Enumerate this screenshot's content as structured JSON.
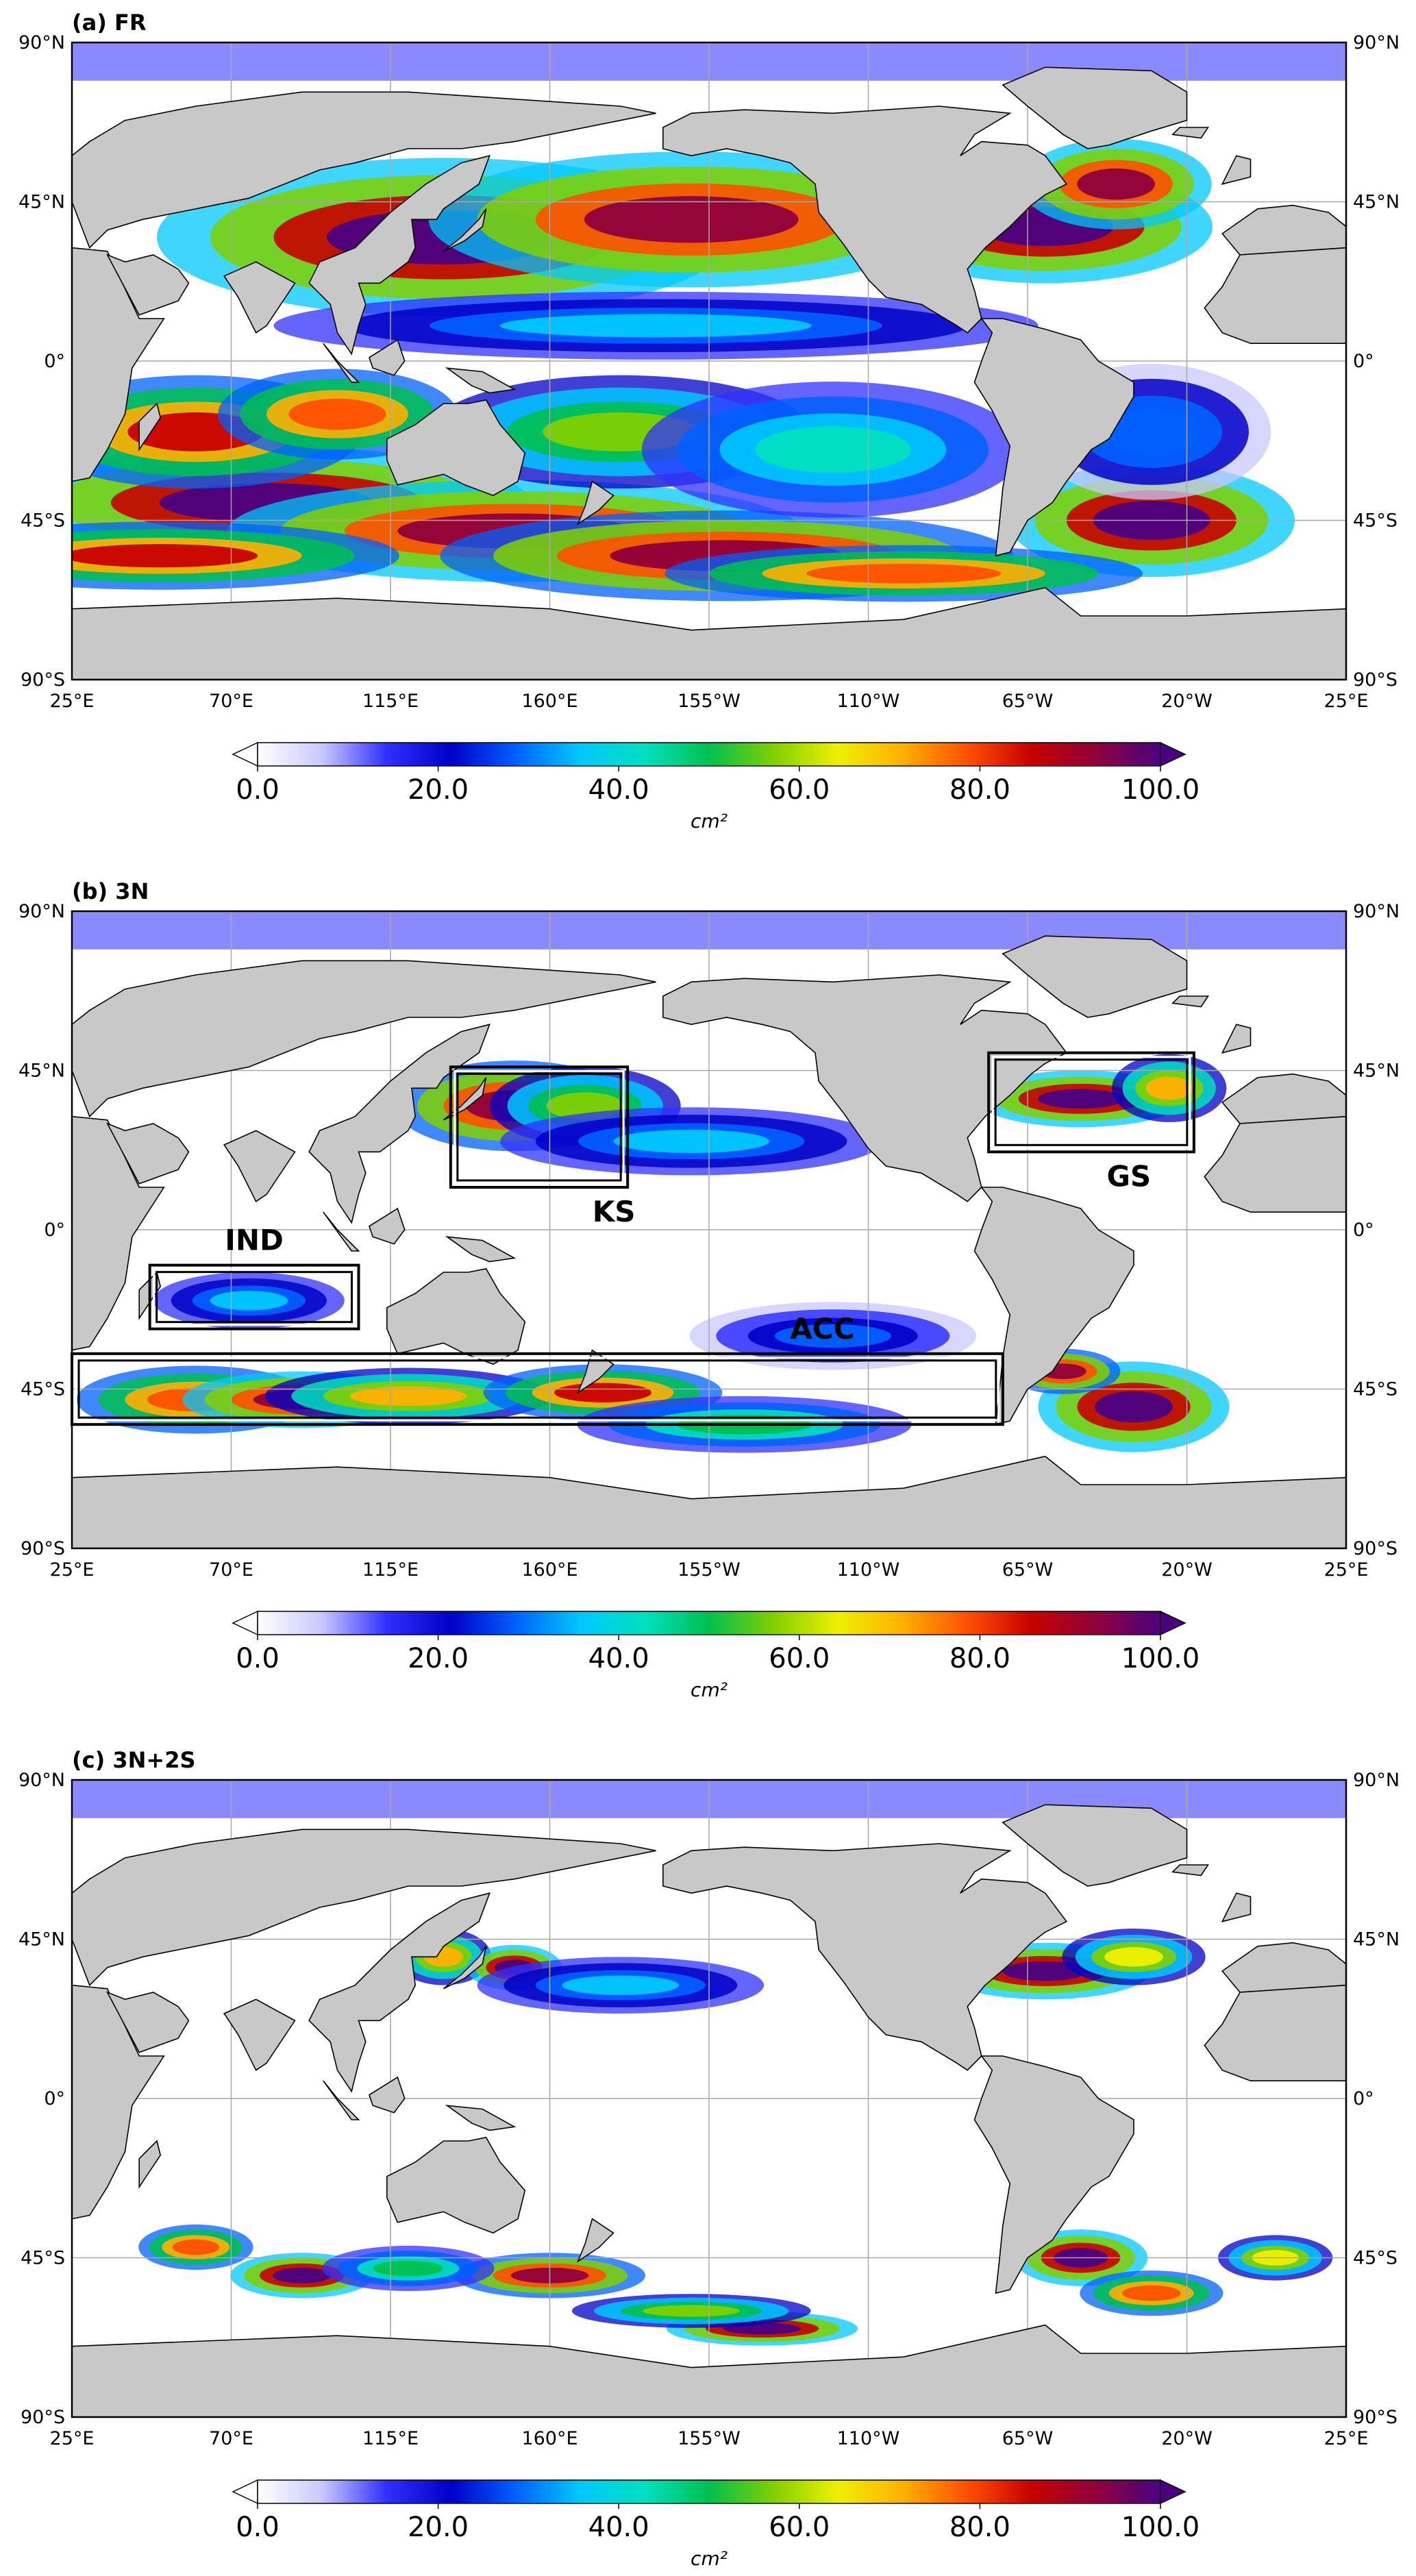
{
  "panels": [
    {
      "id": "a",
      "title": "(a) FR",
      "colorbar_label": "cm²",
      "regions": []
    },
    {
      "id": "b",
      "title": "(b) 3N",
      "colorbar_label": "cm²",
      "regions": [
        {
          "name": "KS",
          "label": "KS",
          "lon": [
            132,
            182
          ],
          "lat": [
            12,
            46
          ]
        },
        {
          "name": "GS",
          "label": "GS",
          "lon": [
            284,
            342
          ],
          "lat": [
            22,
            50
          ]
        },
        {
          "name": "IND",
          "label": "IND",
          "lon": [
            47,
            106
          ],
          "lat": [
            -28,
            -10
          ]
        },
        {
          "name": "ACC",
          "label": "ACC",
          "lon": [
            25,
            288
          ],
          "lat": [
            -55,
            -35
          ]
        }
      ]
    },
    {
      "id": "c",
      "title": "(c) 3N+2S",
      "colorbar_label": "cm²",
      "regions": []
    }
  ],
  "axes": {
    "lon_ticks": [
      "25°E",
      "70°E",
      "115°E",
      "160°E",
      "155°W",
      "110°W",
      "65°W",
      "20°W",
      "25°E"
    ],
    "lat_ticks": [
      "90°N",
      "45°N",
      "0°",
      "45°S",
      "90°S"
    ]
  },
  "colorbar": {
    "min": 0.0,
    "max": 100.0,
    "tick_labels": [
      "0.0",
      "20.0",
      "40.0",
      "60.0",
      "80.0",
      "100.0"
    ],
    "extend": "both",
    "colors": [
      "#ffffff",
      "#c8c8ff",
      "#3030ff",
      "#0000c8",
      "#0060ff",
      "#00c8ff",
      "#00e0c0",
      "#00c050",
      "#80d000",
      "#f0f000",
      "#ffb000",
      "#ff5000",
      "#c80000",
      "#90003a",
      "#4b0080"
    ]
  },
  "colors": {
    "land": "#c8c8c8",
    "coast": "#000000",
    "frame": "#000000",
    "grid": "#a8a8a8",
    "box": "#000000"
  }
}
